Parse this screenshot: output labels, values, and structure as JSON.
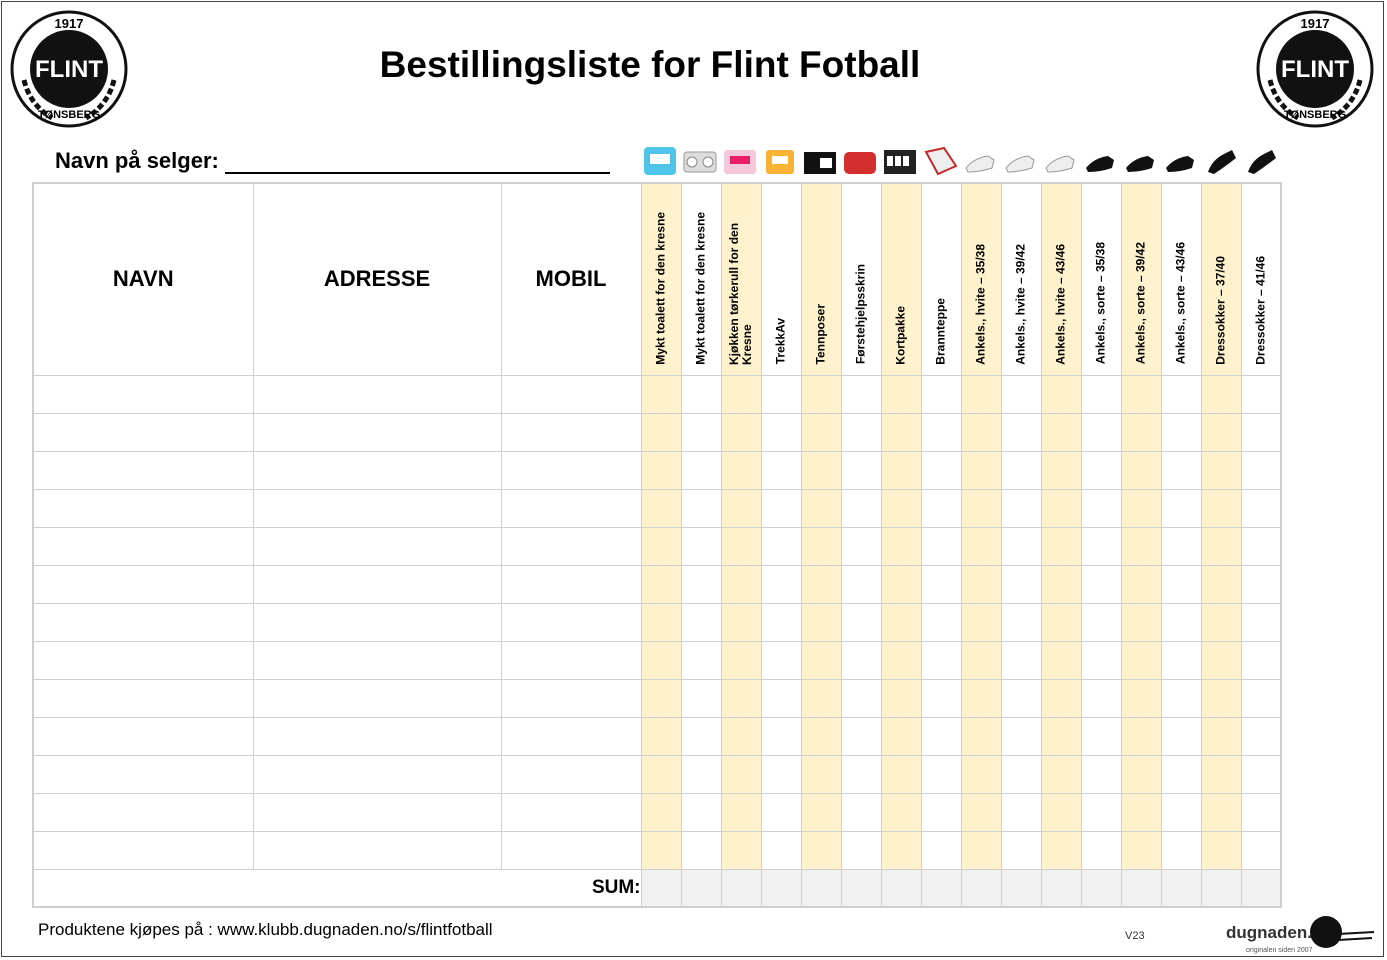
{
  "header": {
    "title": "Bestillingsliste for Flint Fotball",
    "seller_label": "Navn på selger:"
  },
  "logo": {
    "year": "1917",
    "name": "FLINT",
    "city": "TØNSBERG"
  },
  "columns": {
    "navn": "NAVN",
    "adresse": "ADRESSE",
    "mobil": "MOBIL"
  },
  "products": [
    "Mykt toalett for den kresne",
    "Mykt toalett for den kresne",
    "Kjøkken tørkerull for den Kresne",
    "TrekkAv",
    "Tennposer",
    "Førstehjelpsskrin",
    "Kortpakke",
    "Brannteppe",
    "Ankels., hvite – 35/38",
    "Ankels., hvite – 39/42",
    "Ankels., hvite – 43/46",
    "Ankels., sorte – 35/38",
    "Ankels., sorte – 39/42",
    "Ankels., sorte – 43/46",
    "Dressokker – 37/40",
    "Dressokker – 41/46"
  ],
  "product_icons": [
    "toilet-paper-blue-icon",
    "toilet-paper-white-icon",
    "kitchen-roll-pink-icon",
    "trekkav-icon",
    "matchbox-icon",
    "first-aid-kit-icon",
    "card-deck-icon",
    "fire-blanket-icon",
    "white-sock-icon",
    "white-sock-icon",
    "white-sock-icon",
    "black-sock-icon",
    "black-sock-icon",
    "black-sock-icon",
    "black-dress-sock-icon",
    "black-dress-sock-icon"
  ],
  "highlight_color": "#fff2cc",
  "sum_label": "SUM:",
  "footer": {
    "text": "Produktene kjøpes på : www.klubb.dugnaden.no/s/flintfotball",
    "version": "V23",
    "brand": "dugnaden.no",
    "brand_tagline": "originalen siden 2007"
  }
}
